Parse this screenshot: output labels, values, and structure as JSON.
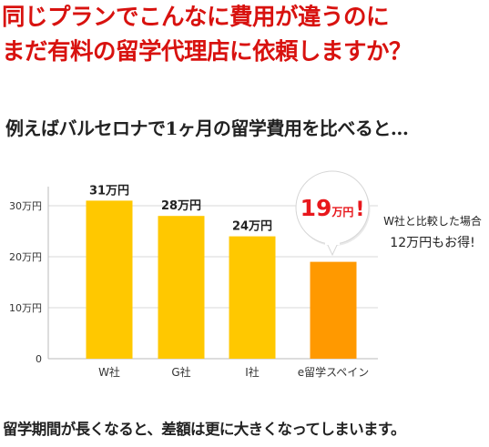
{
  "headline": {
    "line1": "同じプランでこんなに費用が違うのに",
    "line2": "まだ有料の留学代理店に依頼しますか？"
  },
  "subtitle": "例えばバルセロナで1ヶ月の留学費用を比べると…",
  "comparison_note": {
    "line1": "W社と比較した場合",
    "line2": "12万円もお得!"
  },
  "footer": "留学期間が長くなると、差額は更に大きくなってしまいます。",
  "colors": {
    "headline": "#d8120f",
    "bar": "#ffc800",
    "highlight_bar": "#ff9900",
    "highlight_text": "#e8171c"
  },
  "chart_data": {
    "type": "bar",
    "categories": [
      "W社",
      "G社",
      "I社",
      "e留学スペイン"
    ],
    "values": [
      31,
      28,
      24,
      19
    ],
    "value_labels": [
      "31万円",
      "28万円",
      "24万円",
      "19万円!"
    ],
    "highlight_index": 3,
    "highlight_label": {
      "number": "19",
      "unit": "万円",
      "mark": "!"
    },
    "yticks": [
      0,
      10,
      20,
      30
    ],
    "ytick_labels": [
      "0",
      "10万円",
      "20万円",
      "30万円"
    ],
    "ylim": [
      0,
      35
    ],
    "grid": true
  }
}
